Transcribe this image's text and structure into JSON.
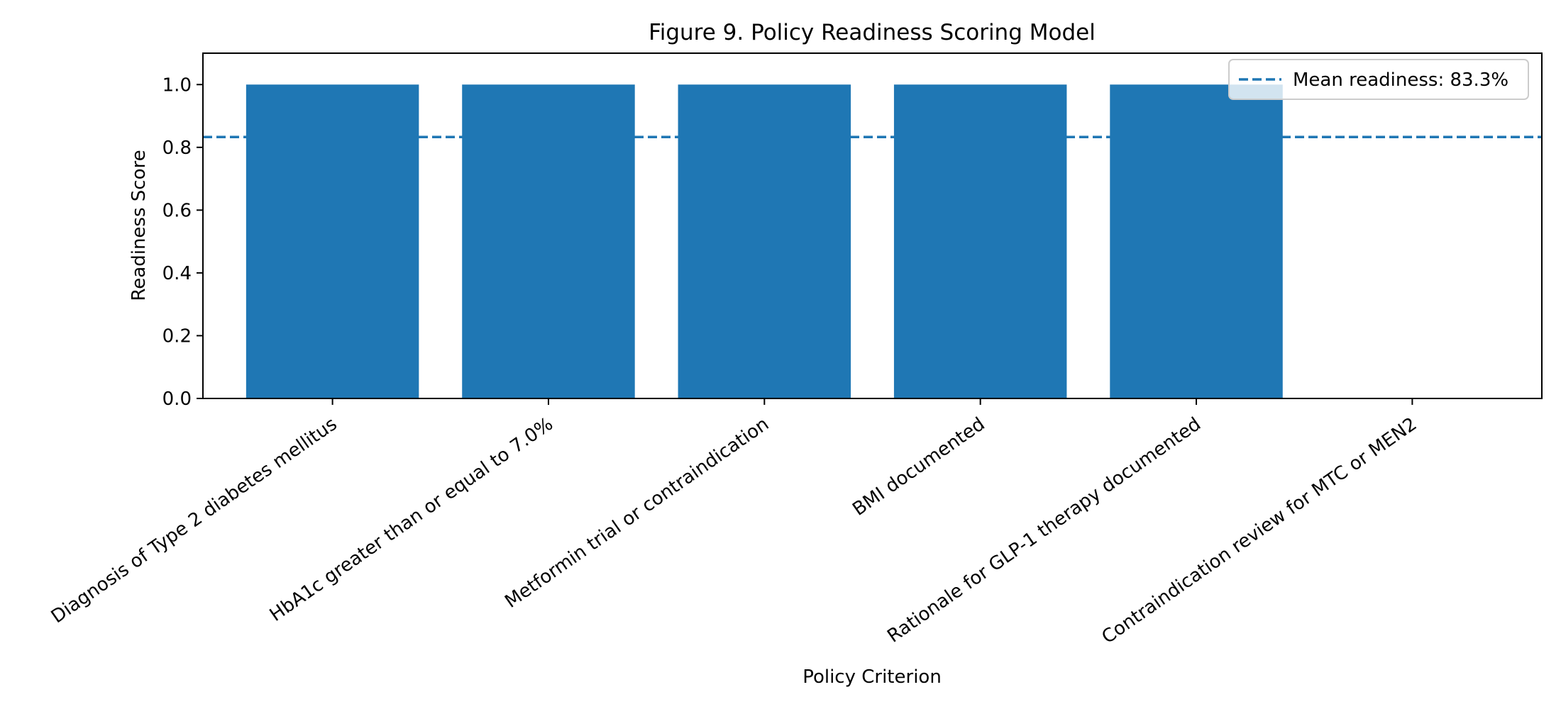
{
  "chart_data": {
    "type": "bar",
    "title": "Figure 9. Policy Readiness Scoring Model",
    "xlabel": "Policy Criterion",
    "ylabel": "Readiness Score",
    "categories": [
      "Diagnosis of Type 2 diabetes mellitus",
      "HbA1c greater than or equal to 7.0%",
      "Metformin trial or contraindication",
      "BMI documented",
      "Rationale for GLP-1 therapy documented",
      "Contraindication review for MTC or MEN2"
    ],
    "values": [
      1.0,
      1.0,
      1.0,
      1.0,
      1.0,
      0.0
    ],
    "ylim": [
      0,
      1.1
    ],
    "yticks": [
      0.0,
      0.2,
      0.4,
      0.6,
      0.8,
      1.0
    ],
    "ytick_labels": [
      "0.0",
      "0.2",
      "0.4",
      "0.6",
      "0.8",
      "1.0"
    ],
    "mean_line": {
      "value": 0.833,
      "label": "Mean readiness: 83.3%",
      "style": "dashed"
    },
    "bar_color": "#1f77b4",
    "grid": false,
    "legend": {
      "position": "top-right",
      "entries": [
        "Mean readiness: 83.3%"
      ]
    }
  }
}
